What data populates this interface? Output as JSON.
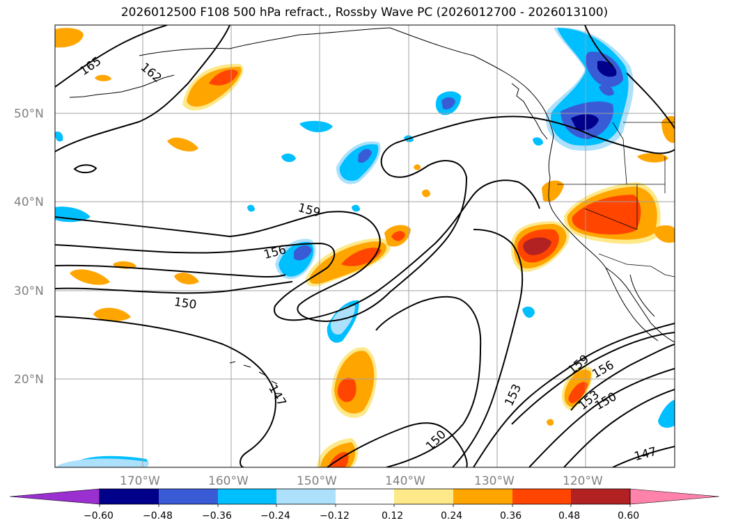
{
  "title": "2026012500 F108 500 hPa refract., Rossby Wave PC (2026012700 - 2026013100)",
  "lat_labels": [
    "50°N",
    "40°N",
    "30°N",
    "20°N"
  ],
  "lon_labels": [
    "170°W",
    "160°W",
    "150°W",
    "140°W",
    "130°W",
    "120°W"
  ],
  "colorbar": {
    "levels": [
      "−0.60",
      "−0.48",
      "−0.36",
      "−0.24",
      "−0.12",
      "0.12",
      "0.24",
      "0.36",
      "0.48",
      "0.60"
    ],
    "colors": [
      "#9b30d0",
      "#00008b",
      "#3a5bd6",
      "#00bfff",
      "#ade0fa",
      "#ffffff",
      "#fde98a",
      "#ffa500",
      "#ff4500",
      "#b22222",
      "#ff82ab"
    ]
  },
  "contour_labels": [
    "165",
    "162",
    "159",
    "156",
    "150",
    "147",
    "153",
    "159",
    "156",
    "153",
    "150",
    "150",
    "147"
  ],
  "chart_data": {
    "type": "map",
    "title": "2026012500 F108 500 hPa refract., Rossby Wave PC (2026012700 - 2026013100)",
    "lat_ticks": [
      50,
      40,
      30,
      20
    ],
    "lon_ticks": [
      -170,
      -160,
      -150,
      -140,
      -130,
      -120
    ],
    "shading_levels": [
      -0.6,
      -0.48,
      -0.36,
      -0.24,
      -0.12,
      0.12,
      0.24,
      0.36,
      0.48,
      0.6
    ],
    "contour_values": [
      147,
      150,
      153,
      156,
      159,
      162,
      165
    ]
  }
}
